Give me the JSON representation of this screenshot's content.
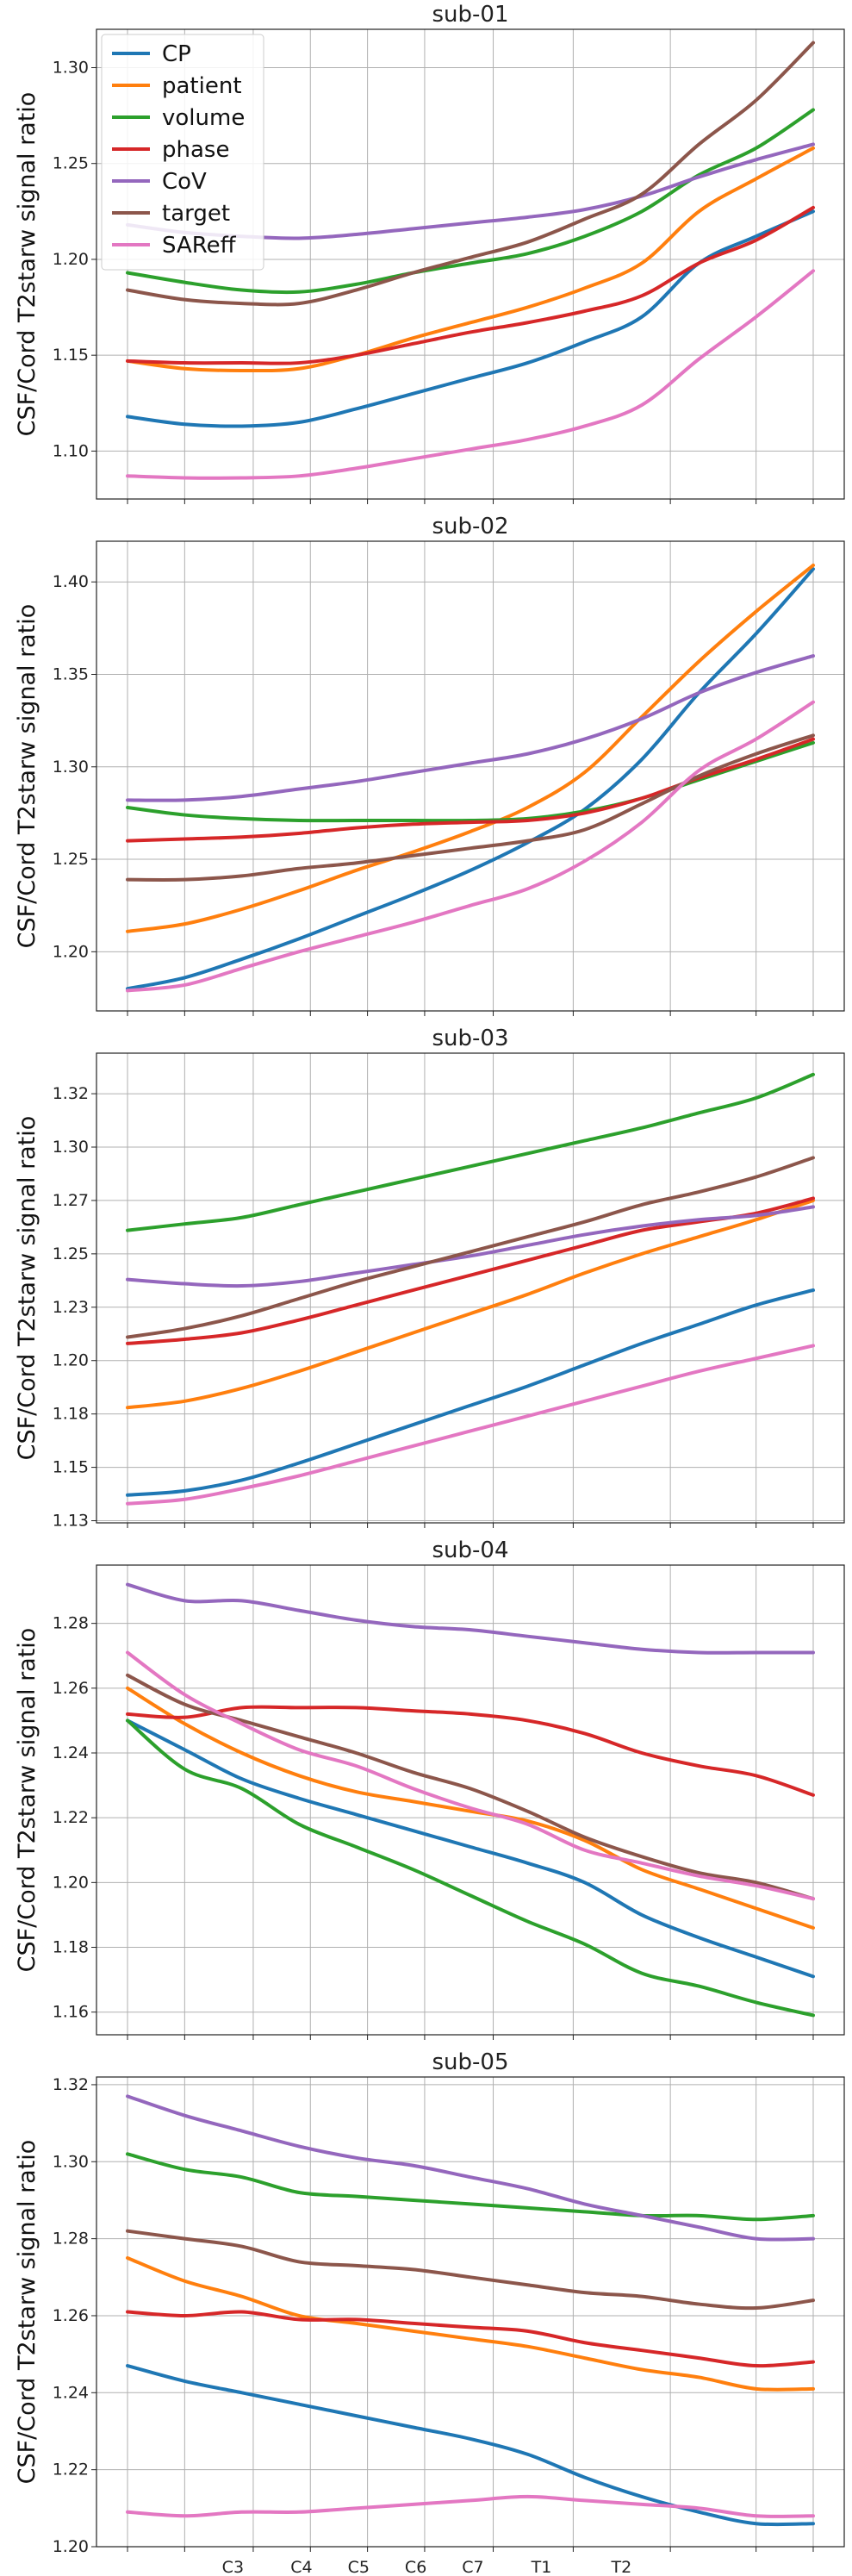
{
  "chart_data": [
    {
      "type": "line",
      "title": "sub-01",
      "ylabel": "CSF/Cord T2starw signal ratio",
      "x": [
        0,
        1,
        2,
        3,
        4,
        5,
        6,
        7,
        8,
        9,
        10,
        11,
        12
      ],
      "ylim": [
        1.075,
        1.32
      ],
      "yticks": [
        1.1,
        1.15,
        1.2,
        1.25,
        1.3
      ],
      "legend": "top-left",
      "series": [
        {
          "name": "CP",
          "color": "#1f77b4",
          "values": [
            1.118,
            1.114,
            1.113,
            1.115,
            1.122,
            1.13,
            1.138,
            1.146,
            1.157,
            1.17,
            1.198,
            1.212,
            1.225
          ]
        },
        {
          "name": "patient",
          "color": "#ff7f0e",
          "values": [
            1.147,
            1.143,
            1.142,
            1.143,
            1.15,
            1.159,
            1.167,
            1.175,
            1.185,
            1.198,
            1.225,
            1.242,
            1.258
          ]
        },
        {
          "name": "volume",
          "color": "#2ca02c",
          "values": [
            1.193,
            1.188,
            1.184,
            1.183,
            1.187,
            1.193,
            1.198,
            1.203,
            1.212,
            1.225,
            1.244,
            1.258,
            1.278
          ]
        },
        {
          "name": "phase",
          "color": "#d62728",
          "values": [
            1.147,
            1.146,
            1.146,
            1.146,
            1.15,
            1.156,
            1.162,
            1.167,
            1.173,
            1.181,
            1.198,
            1.21,
            1.227
          ]
        },
        {
          "name": "CoV",
          "color": "#9467bd",
          "values": [
            1.218,
            1.214,
            1.212,
            1.211,
            1.213,
            1.216,
            1.219,
            1.222,
            1.226,
            1.233,
            1.243,
            1.252,
            1.26
          ]
        },
        {
          "name": "target",
          "color": "#8c564b",
          "values": [
            1.184,
            1.179,
            1.177,
            1.177,
            1.184,
            1.193,
            1.201,
            1.209,
            1.221,
            1.234,
            1.26,
            1.283,
            1.313
          ]
        },
        {
          "name": "SAReff",
          "color": "#e377c2",
          "values": [
            1.087,
            1.086,
            1.086,
            1.087,
            1.091,
            1.096,
            1.101,
            1.106,
            1.113,
            1.124,
            1.148,
            1.17,
            1.194
          ]
        }
      ]
    },
    {
      "type": "line",
      "title": "sub-02",
      "ylabel": "CSF/Cord T2starw signal ratio",
      "x": [
        0,
        1,
        2,
        3,
        4,
        5,
        6,
        7,
        8,
        9,
        10,
        11,
        12
      ],
      "ylim": [
        1.168,
        1.422
      ],
      "yticks": [
        1.2,
        1.25,
        1.3,
        1.35,
        1.4
      ],
      "series": [
        {
          "name": "CP",
          "color": "#1f77b4",
          "values": [
            1.18,
            1.186,
            1.196,
            1.207,
            1.219,
            1.231,
            1.244,
            1.259,
            1.277,
            1.304,
            1.34,
            1.372,
            1.407
          ]
        },
        {
          "name": "patient",
          "color": "#ff7f0e",
          "values": [
            1.211,
            1.215,
            1.223,
            1.233,
            1.244,
            1.254,
            1.265,
            1.278,
            1.297,
            1.327,
            1.357,
            1.384,
            1.409
          ]
        },
        {
          "name": "volume",
          "color": "#2ca02c",
          "values": [
            1.278,
            1.274,
            1.272,
            1.271,
            1.271,
            1.271,
            1.271,
            1.272,
            1.276,
            1.283,
            1.293,
            1.303,
            1.313
          ]
        },
        {
          "name": "phase",
          "color": "#d62728",
          "values": [
            1.26,
            1.261,
            1.262,
            1.264,
            1.267,
            1.269,
            1.27,
            1.271,
            1.275,
            1.283,
            1.294,
            1.304,
            1.315
          ]
        },
        {
          "name": "CoV",
          "color": "#9467bd",
          "values": [
            1.282,
            1.282,
            1.284,
            1.288,
            1.292,
            1.297,
            1.302,
            1.307,
            1.315,
            1.326,
            1.34,
            1.351,
            1.36
          ]
        },
        {
          "name": "target",
          "color": "#8c564b",
          "values": [
            1.239,
            1.239,
            1.241,
            1.245,
            1.248,
            1.252,
            1.256,
            1.26,
            1.266,
            1.28,
            1.295,
            1.307,
            1.317
          ]
        },
        {
          "name": "SAReff",
          "color": "#e377c2",
          "values": [
            1.179,
            1.182,
            1.191,
            1.2,
            1.208,
            1.216,
            1.225,
            1.234,
            1.249,
            1.27,
            1.298,
            1.315,
            1.335
          ]
        }
      ]
    },
    {
      "type": "line",
      "title": "sub-03",
      "ylabel": "CSF/Cord T2starw signal ratio",
      "x": [
        0,
        1,
        2,
        3,
        4,
        5,
        6,
        7,
        8,
        9,
        10,
        11,
        12
      ],
      "ylim": [
        1.124,
        1.344
      ],
      "yticks": [
        1.125,
        1.15,
        1.175,
        1.2,
        1.225,
        1.25,
        1.275,
        1.3,
        1.325
      ],
      "series": [
        {
          "name": "CP",
          "color": "#1f77b4",
          "values": [
            1.137,
            1.139,
            1.144,
            1.152,
            1.161,
            1.17,
            1.179,
            1.188,
            1.198,
            1.208,
            1.217,
            1.226,
            1.233
          ]
        },
        {
          "name": "patient",
          "color": "#ff7f0e",
          "values": [
            1.178,
            1.181,
            1.187,
            1.195,
            1.204,
            1.213,
            1.222,
            1.231,
            1.241,
            1.25,
            1.258,
            1.266,
            1.275
          ]
        },
        {
          "name": "volume",
          "color": "#2ca02c",
          "values": [
            1.261,
            1.264,
            1.267,
            1.273,
            1.279,
            1.285,
            1.291,
            1.297,
            1.303,
            1.309,
            1.316,
            1.323,
            1.334
          ]
        },
        {
          "name": "phase",
          "color": "#d62728",
          "values": [
            1.208,
            1.21,
            1.213,
            1.219,
            1.226,
            1.233,
            1.24,
            1.247,
            1.254,
            1.261,
            1.265,
            1.269,
            1.276
          ]
        },
        {
          "name": "CoV",
          "color": "#9467bd",
          "values": [
            1.238,
            1.236,
            1.235,
            1.237,
            1.241,
            1.245,
            1.249,
            1.254,
            1.259,
            1.263,
            1.266,
            1.268,
            1.272
          ]
        },
        {
          "name": "target",
          "color": "#8c564b",
          "values": [
            1.211,
            1.215,
            1.221,
            1.229,
            1.237,
            1.244,
            1.251,
            1.258,
            1.265,
            1.273,
            1.279,
            1.286,
            1.295
          ]
        },
        {
          "name": "SAReff",
          "color": "#e377c2",
          "values": [
            1.133,
            1.135,
            1.14,
            1.146,
            1.153,
            1.16,
            1.167,
            1.174,
            1.181,
            1.188,
            1.195,
            1.201,
            1.207
          ]
        }
      ]
    },
    {
      "type": "line",
      "title": "sub-04",
      "ylabel": "CSF/Cord T2starw signal ratio",
      "x": [
        0,
        1,
        2,
        3,
        4,
        5,
        6,
        7,
        8,
        9,
        10,
        11,
        12
      ],
      "ylim": [
        1.153,
        1.298
      ],
      "yticks": [
        1.16,
        1.18,
        1.2,
        1.22,
        1.24,
        1.26,
        1.28
      ],
      "series": [
        {
          "name": "CP",
          "color": "#1f77b4",
          "values": [
            1.25,
            1.241,
            1.232,
            1.226,
            1.221,
            1.216,
            1.211,
            1.206,
            1.2,
            1.19,
            1.183,
            1.177,
            1.171
          ]
        },
        {
          "name": "patient",
          "color": "#ff7f0e",
          "values": [
            1.26,
            1.249,
            1.24,
            1.233,
            1.228,
            1.225,
            1.222,
            1.219,
            1.213,
            1.204,
            1.198,
            1.192,
            1.186
          ]
        },
        {
          "name": "volume",
          "color": "#2ca02c",
          "values": [
            1.25,
            1.235,
            1.229,
            1.218,
            1.211,
            1.204,
            1.196,
            1.188,
            1.181,
            1.172,
            1.168,
            1.163,
            1.159
          ]
        },
        {
          "name": "phase",
          "color": "#d62728",
          "values": [
            1.252,
            1.251,
            1.254,
            1.254,
            1.254,
            1.253,
            1.252,
            1.25,
            1.246,
            1.24,
            1.236,
            1.233,
            1.227
          ]
        },
        {
          "name": "CoV",
          "color": "#9467bd",
          "values": [
            1.292,
            1.287,
            1.287,
            1.284,
            1.281,
            1.279,
            1.278,
            1.276,
            1.274,
            1.272,
            1.271,
            1.271,
            1.271
          ]
        },
        {
          "name": "target",
          "color": "#8c564b",
          "values": [
            1.264,
            1.255,
            1.25,
            1.245,
            1.24,
            1.234,
            1.229,
            1.222,
            1.214,
            1.208,
            1.203,
            1.2,
            1.195
          ]
        },
        {
          "name": "SAReff",
          "color": "#e377c2",
          "values": [
            1.271,
            1.258,
            1.249,
            1.241,
            1.236,
            1.229,
            1.223,
            1.218,
            1.21,
            1.206,
            1.202,
            1.199,
            1.195
          ]
        }
      ]
    },
    {
      "type": "line",
      "title": "sub-05",
      "ylabel": "CSF/Cord T2starw signal ratio",
      "x": [
        0,
        1,
        2,
        3,
        4,
        5,
        6,
        7,
        8,
        9,
        10,
        11,
        12
      ],
      "ylim": [
        1.2,
        1.322
      ],
      "yticks": [
        1.2,
        1.22,
        1.24,
        1.26,
        1.28,
        1.3,
        1.32
      ],
      "xtick_positions": [
        1,
        2.2,
        3.2,
        4.2,
        5.2,
        6.4,
        7.8
      ],
      "xtick_labels": [
        "C3",
        "C4",
        "C5",
        "C6",
        "C7",
        "T1",
        "T2"
      ],
      "series": [
        {
          "name": "CP",
          "color": "#1f77b4",
          "values": [
            1.247,
            1.243,
            1.24,
            1.237,
            1.234,
            1.231,
            1.228,
            1.224,
            1.218,
            1.213,
            1.209,
            1.206,
            1.206
          ]
        },
        {
          "name": "patient",
          "color": "#ff7f0e",
          "values": [
            1.275,
            1.269,
            1.265,
            1.26,
            1.258,
            1.256,
            1.254,
            1.252,
            1.249,
            1.246,
            1.244,
            1.241,
            1.241
          ]
        },
        {
          "name": "volume",
          "color": "#2ca02c",
          "values": [
            1.302,
            1.298,
            1.296,
            1.292,
            1.291,
            1.29,
            1.289,
            1.288,
            1.287,
            1.286,
            1.286,
            1.285,
            1.286
          ]
        },
        {
          "name": "phase",
          "color": "#d62728",
          "values": [
            1.261,
            1.26,
            1.261,
            1.259,
            1.259,
            1.258,
            1.257,
            1.256,
            1.253,
            1.251,
            1.249,
            1.247,
            1.248
          ]
        },
        {
          "name": "CoV",
          "color": "#9467bd",
          "values": [
            1.317,
            1.312,
            1.308,
            1.304,
            1.301,
            1.299,
            1.296,
            1.293,
            1.289,
            1.286,
            1.283,
            1.28,
            1.28
          ]
        },
        {
          "name": "target",
          "color": "#8c564b",
          "values": [
            1.282,
            1.28,
            1.278,
            1.274,
            1.273,
            1.272,
            1.27,
            1.268,
            1.266,
            1.265,
            1.263,
            1.262,
            1.264
          ]
        },
        {
          "name": "SAReff",
          "color": "#e377c2",
          "values": [
            1.209,
            1.208,
            1.209,
            1.209,
            1.21,
            1.211,
            1.212,
            1.213,
            1.212,
            1.211,
            1.21,
            1.208,
            1.208
          ]
        }
      ]
    }
  ]
}
